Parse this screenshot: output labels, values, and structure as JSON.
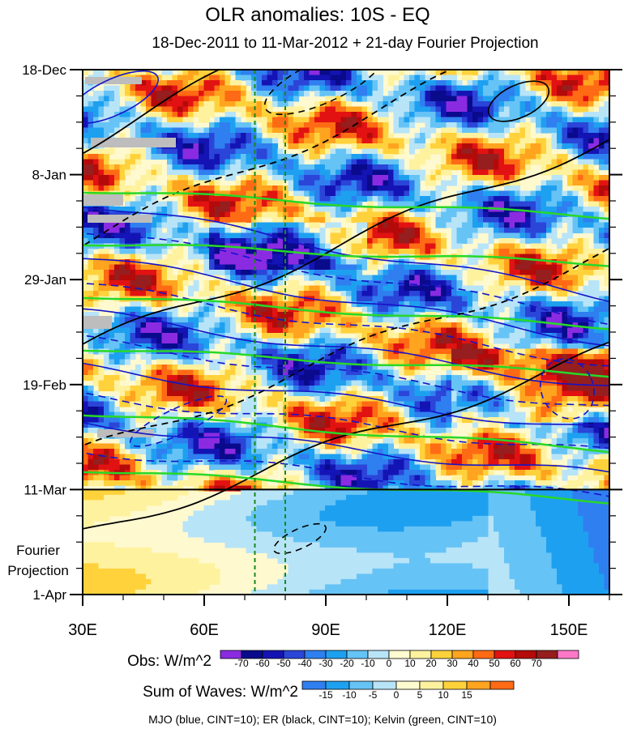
{
  "chart_data": {
    "type": "heatmap",
    "title": "OLR anomalies: 10S - EQ",
    "subtitle": "18-Dec-2011 to 11-Mar-2012 + 21-day Fourier Projection",
    "x_axis": {
      "range": [
        30,
        160
      ],
      "ticks": [
        {
          "value": 30,
          "label": "30E"
        },
        {
          "value": 60,
          "label": "60E"
        },
        {
          "value": 90,
          "label": "90E"
        },
        {
          "value": 120,
          "label": "120E"
        },
        {
          "value": 150,
          "label": "150E"
        }
      ]
    },
    "y_axis": {
      "range_days": [
        0,
        105
      ],
      "ticks": [
        {
          "day": 0,
          "label": "18-Dec"
        },
        {
          "day": 21,
          "label": "8-Jan"
        },
        {
          "day": 42,
          "label": "29-Jan"
        },
        {
          "day": 63,
          "label": "19-Feb"
        },
        {
          "day": 84,
          "label": "11-Mar"
        },
        {
          "day": 105,
          "label": "1-Apr"
        }
      ],
      "projection_label_line1": "Fourier",
      "projection_label_line2": "Projection"
    },
    "projection_start_day": 84,
    "reference_lines_lon": [
      72.5,
      80
    ],
    "colorbars": [
      {
        "title": "Obs: W/m^2",
        "labels": [
          "-70",
          "-60",
          "-50",
          "-40",
          "-30",
          "-20",
          "-10",
          "0",
          "10",
          "20",
          "30",
          "40",
          "50",
          "60",
          "70"
        ],
        "colors": [
          "#8a2be2",
          "#0a0a8c",
          "#1414b4",
          "#2a45d8",
          "#2f7ff0",
          "#1ea0f0",
          "#66c3f5",
          "#b8e4f8",
          "#fffbd0",
          "#fff29e",
          "#ffd23c",
          "#ffa41e",
          "#ff6a14",
          "#e21212",
          "#b40a0a",
          "#961e1e",
          "#ff78c8"
        ]
      },
      {
        "title": "Sum of Waves: W/m^2",
        "labels": [
          "-15",
          "-10",
          "-5",
          "0",
          "5",
          "10",
          "15"
        ],
        "colors": [
          "#2f7ff0",
          "#1ea0f0",
          "#66c3f5",
          "#b8e4f8",
          "#fffbd0",
          "#fff29e",
          "#ffd23c",
          "#ffa41e",
          "#ff6a14"
        ]
      }
    ],
    "filtered_waves": [
      {
        "name": "MJO",
        "color": "blue",
        "cint": 10
      },
      {
        "name": "ER",
        "color": "black",
        "cint": 10
      },
      {
        "name": "Kelvin",
        "color": "green",
        "cint": 10
      }
    ],
    "footnote": "MJO (blue, CINT=10); ER (black, CINT=10); Kelvin (green, CINT=10)"
  }
}
